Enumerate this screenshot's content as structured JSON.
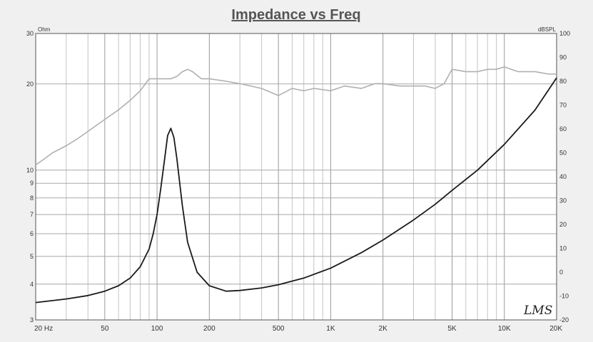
{
  "chart_data": {
    "type": "line",
    "title": "Impedance vs Freq",
    "xscale": "log",
    "xlim": [
      20,
      20000
    ],
    "x_ticks": [
      {
        "value": 20,
        "label": "20 Hz"
      },
      {
        "value": 50,
        "label": "50"
      },
      {
        "value": 100,
        "label": "100"
      },
      {
        "value": 200,
        "label": "200"
      },
      {
        "value": 500,
        "label": "500"
      },
      {
        "value": 1000,
        "label": "1K"
      },
      {
        "value": 2000,
        "label": "2K"
      },
      {
        "value": 5000,
        "label": "5K"
      },
      {
        "value": 10000,
        "label": "10K"
      },
      {
        "value": 20000,
        "label": "20K"
      }
    ],
    "y_left": {
      "unit": "Ohm",
      "scale": "log",
      "lim": [
        3,
        30
      ],
      "ticks": [
        {
          "value": 3,
          "label": "3"
        },
        {
          "value": 4,
          "label": "4"
        },
        {
          "value": 5,
          "label": "5"
        },
        {
          "value": 6,
          "label": "6"
        },
        {
          "value": 7,
          "label": "7"
        },
        {
          "value": 8,
          "label": "8"
        },
        {
          "value": 9,
          "label": "9"
        },
        {
          "value": 10,
          "label": "10"
        },
        {
          "value": 20,
          "label": "20"
        },
        {
          "value": 30,
          "label": "30"
        }
      ]
    },
    "y_right": {
      "unit": "dBSPL",
      "scale": "linear",
      "lim": [
        -20,
        100
      ],
      "ticks": [
        {
          "value": -20,
          "label": "-20"
        },
        {
          "value": -10,
          "label": "-10"
        },
        {
          "value": 0,
          "label": "0"
        },
        {
          "value": 10,
          "label": "10"
        },
        {
          "value": 20,
          "label": "20"
        },
        {
          "value": 30,
          "label": "30"
        },
        {
          "value": 40,
          "label": "40"
        },
        {
          "value": 50,
          "label": "50"
        },
        {
          "value": 60,
          "label": "60"
        },
        {
          "value": 70,
          "label": "70"
        },
        {
          "value": 80,
          "label": "80"
        },
        {
          "value": 90,
          "label": "90"
        },
        {
          "value": 100,
          "label": "100"
        }
      ]
    },
    "grid": true,
    "series": [
      {
        "axis": "left",
        "color": "#1a1a1a",
        "x": [
          20,
          30,
          40,
          50,
          60,
          70,
          80,
          90,
          95,
          100,
          105,
          110,
          115,
          120,
          125,
          130,
          140,
          150,
          170,
          200,
          250,
          300,
          400,
          500,
          700,
          1000,
          1500,
          2000,
          3000,
          4000,
          5000,
          7000,
          10000,
          15000,
          20000
        ],
        "y": [
          3.45,
          3.55,
          3.65,
          3.78,
          3.95,
          4.2,
          4.6,
          5.3,
          6.0,
          7.0,
          8.6,
          10.7,
          13.2,
          14.0,
          13.0,
          11.0,
          7.5,
          5.6,
          4.4,
          3.95,
          3.78,
          3.8,
          3.88,
          3.98,
          4.2,
          4.55,
          5.15,
          5.7,
          6.7,
          7.6,
          8.5,
          10.0,
          12.3,
          16.2,
          21.0
        ]
      },
      {
        "axis": "right",
        "color": "#b0b0b0",
        "x": [
          20,
          22,
          25,
          30,
          35,
          40,
          50,
          60,
          70,
          80,
          90,
          100,
          110,
          120,
          130,
          140,
          150,
          160,
          180,
          200,
          250,
          300,
          400,
          500,
          600,
          700,
          800,
          1000,
          1200,
          1500,
          1800,
          2000,
          2500,
          3000,
          3500,
          4000,
          4500,
          5000,
          6000,
          7000,
          8000,
          9000,
          10000,
          12000,
          15000,
          18000,
          20000
        ],
        "y": [
          45,
          47,
          50,
          53,
          56,
          59,
          64,
          68,
          72,
          76,
          81,
          81,
          81,
          81,
          82,
          84,
          85,
          84,
          81,
          81,
          80,
          79,
          77,
          74,
          77,
          76,
          77,
          76,
          78,
          77,
          79,
          79,
          78,
          78,
          78,
          77,
          79,
          85,
          84,
          84,
          85,
          85,
          86,
          84,
          84,
          83,
          83
        ]
      }
    ]
  },
  "logo_text": "LMS"
}
